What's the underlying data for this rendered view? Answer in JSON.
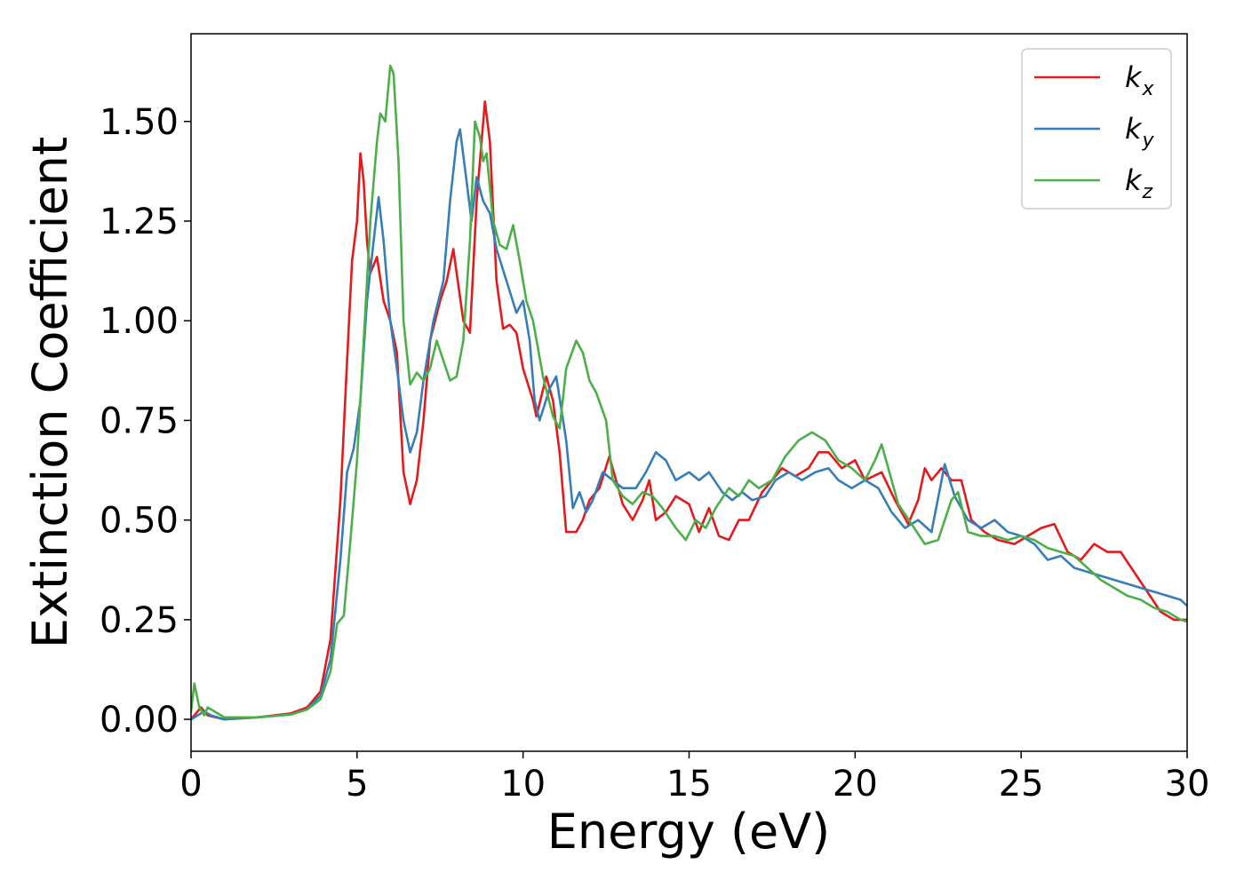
{
  "chart_data": {
    "type": "line",
    "title": "",
    "xlabel": "Energy (eV)",
    "ylabel": "Extinction Coefficient",
    "xlim": [
      0,
      30
    ],
    "ylim": [
      -0.08,
      1.72
    ],
    "xticks": [
      0,
      5,
      10,
      15,
      20,
      25,
      30
    ],
    "xtick_labels": [
      "0",
      "5",
      "10",
      "15",
      "20",
      "25",
      "30"
    ],
    "yticks": [
      0,
      0.25,
      0.5,
      0.75,
      1.0,
      1.25,
      1.5
    ],
    "ytick_labels": [
      "0.00",
      "0.25",
      "0.50",
      "0.75",
      "1.00",
      "1.25",
      "1.50"
    ],
    "grid": false,
    "legend_position": "top-right",
    "series": [
      {
        "name": "k",
        "subscript": "x",
        "color": "#e41a1c",
        "points": [
          [
            0,
            0
          ],
          [
            0.2,
            0.02
          ],
          [
            0.3,
            0.03
          ],
          [
            0.5,
            0.01
          ],
          [
            1,
            0
          ],
          [
            2,
            0.005
          ],
          [
            3,
            0.015
          ],
          [
            3.5,
            0.03
          ],
          [
            3.9,
            0.07
          ],
          [
            4.2,
            0.2
          ],
          [
            4.5,
            0.55
          ],
          [
            4.7,
            0.9
          ],
          [
            4.85,
            1.15
          ],
          [
            5.0,
            1.25
          ],
          [
            5.1,
            1.42
          ],
          [
            5.2,
            1.35
          ],
          [
            5.3,
            1.2
          ],
          [
            5.4,
            1.12
          ],
          [
            5.6,
            1.16
          ],
          [
            5.8,
            1.05
          ],
          [
            6.0,
            1.0
          ],
          [
            6.2,
            0.92
          ],
          [
            6.4,
            0.62
          ],
          [
            6.6,
            0.54
          ],
          [
            6.8,
            0.6
          ],
          [
            7.0,
            0.75
          ],
          [
            7.2,
            0.95
          ],
          [
            7.5,
            1.05
          ],
          [
            7.7,
            1.1
          ],
          [
            7.9,
            1.18
          ],
          [
            8.0,
            1.12
          ],
          [
            8.2,
            1.0
          ],
          [
            8.4,
            0.97
          ],
          [
            8.6,
            1.3
          ],
          [
            8.75,
            1.45
          ],
          [
            8.85,
            1.55
          ],
          [
            9.0,
            1.45
          ],
          [
            9.2,
            1.1
          ],
          [
            9.4,
            0.98
          ],
          [
            9.6,
            0.99
          ],
          [
            9.8,
            0.97
          ],
          [
            10.0,
            0.88
          ],
          [
            10.3,
            0.8
          ],
          [
            10.4,
            0.76
          ],
          [
            10.7,
            0.86
          ],
          [
            10.9,
            0.8
          ],
          [
            11.1,
            0.67
          ],
          [
            11.3,
            0.47
          ],
          [
            11.6,
            0.47
          ],
          [
            11.8,
            0.5
          ],
          [
            12.0,
            0.55
          ],
          [
            12.3,
            0.58
          ],
          [
            12.6,
            0.66
          ],
          [
            12.8,
            0.6
          ],
          [
            13.0,
            0.54
          ],
          [
            13.3,
            0.5
          ],
          [
            13.6,
            0.55
          ],
          [
            13.8,
            0.6
          ],
          [
            14.0,
            0.5
          ],
          [
            14.3,
            0.52
          ],
          [
            14.6,
            0.56
          ],
          [
            15.0,
            0.54
          ],
          [
            15.3,
            0.47
          ],
          [
            15.6,
            0.53
          ],
          [
            15.9,
            0.46
          ],
          [
            16.2,
            0.45
          ],
          [
            16.5,
            0.5
          ],
          [
            16.8,
            0.5
          ],
          [
            17.2,
            0.57
          ],
          [
            17.5,
            0.6
          ],
          [
            17.8,
            0.63
          ],
          [
            18.2,
            0.61
          ],
          [
            18.6,
            0.63
          ],
          [
            18.9,
            0.67
          ],
          [
            19.2,
            0.67
          ],
          [
            19.6,
            0.63
          ],
          [
            20.0,
            0.65
          ],
          [
            20.3,
            0.6
          ],
          [
            20.8,
            0.62
          ],
          [
            21.2,
            0.55
          ],
          [
            21.6,
            0.49
          ],
          [
            21.9,
            0.55
          ],
          [
            22.1,
            0.63
          ],
          [
            22.3,
            0.6
          ],
          [
            22.6,
            0.63
          ],
          [
            22.9,
            0.6
          ],
          [
            23.2,
            0.6
          ],
          [
            23.5,
            0.5
          ],
          [
            23.9,
            0.47
          ],
          [
            24.3,
            0.45
          ],
          [
            24.8,
            0.44
          ],
          [
            25.2,
            0.46
          ],
          [
            25.6,
            0.48
          ],
          [
            26.0,
            0.49
          ],
          [
            26.4,
            0.42
          ],
          [
            26.8,
            0.4
          ],
          [
            27.2,
            0.44
          ],
          [
            27.6,
            0.42
          ],
          [
            28.0,
            0.42
          ],
          [
            28.4,
            0.37
          ],
          [
            28.8,
            0.32
          ],
          [
            29.2,
            0.27
          ],
          [
            29.6,
            0.25
          ],
          [
            30,
            0.25
          ]
        ]
      },
      {
        "name": "k",
        "subscript": "y",
        "color": "#377eb8",
        "points": [
          [
            0,
            0
          ],
          [
            0.2,
            0.01
          ],
          [
            0.4,
            0.02
          ],
          [
            0.6,
            0.01
          ],
          [
            1,
            0
          ],
          [
            2,
            0.005
          ],
          [
            3,
            0.012
          ],
          [
            3.5,
            0.025
          ],
          [
            3.9,
            0.06
          ],
          [
            4.2,
            0.15
          ],
          [
            4.5,
            0.4
          ],
          [
            4.7,
            0.62
          ],
          [
            4.9,
            0.68
          ],
          [
            5.1,
            0.8
          ],
          [
            5.3,
            1.05
          ],
          [
            5.5,
            1.2
          ],
          [
            5.65,
            1.31
          ],
          [
            5.8,
            1.2
          ],
          [
            6.0,
            1.0
          ],
          [
            6.2,
            0.88
          ],
          [
            6.4,
            0.75
          ],
          [
            6.6,
            0.67
          ],
          [
            6.8,
            0.72
          ],
          [
            7.0,
            0.85
          ],
          [
            7.3,
            1.0
          ],
          [
            7.6,
            1.1
          ],
          [
            7.8,
            1.3
          ],
          [
            8.0,
            1.45
          ],
          [
            8.1,
            1.48
          ],
          [
            8.3,
            1.35
          ],
          [
            8.45,
            1.25
          ],
          [
            8.6,
            1.36
          ],
          [
            8.8,
            1.3
          ],
          [
            9.0,
            1.27
          ],
          [
            9.2,
            1.18
          ],
          [
            9.5,
            1.1
          ],
          [
            9.8,
            1.02
          ],
          [
            10.0,
            1.05
          ],
          [
            10.2,
            0.95
          ],
          [
            10.35,
            0.8
          ],
          [
            10.5,
            0.75
          ],
          [
            10.8,
            0.83
          ],
          [
            11.0,
            0.86
          ],
          [
            11.3,
            0.7
          ],
          [
            11.5,
            0.53
          ],
          [
            11.7,
            0.57
          ],
          [
            11.9,
            0.52
          ],
          [
            12.1,
            0.55
          ],
          [
            12.4,
            0.62
          ],
          [
            12.7,
            0.6
          ],
          [
            13.0,
            0.58
          ],
          [
            13.4,
            0.58
          ],
          [
            13.7,
            0.62
          ],
          [
            14.0,
            0.67
          ],
          [
            14.3,
            0.65
          ],
          [
            14.6,
            0.6
          ],
          [
            15.0,
            0.62
          ],
          [
            15.3,
            0.6
          ],
          [
            15.6,
            0.62
          ],
          [
            16.0,
            0.57
          ],
          [
            16.3,
            0.55
          ],
          [
            16.6,
            0.57
          ],
          [
            16.9,
            0.55
          ],
          [
            17.3,
            0.56
          ],
          [
            17.6,
            0.6
          ],
          [
            18.0,
            0.62
          ],
          [
            18.4,
            0.6
          ],
          [
            18.8,
            0.62
          ],
          [
            19.2,
            0.63
          ],
          [
            19.5,
            0.6
          ],
          [
            19.9,
            0.58
          ],
          [
            20.3,
            0.6
          ],
          [
            20.7,
            0.58
          ],
          [
            21.1,
            0.52
          ],
          [
            21.5,
            0.48
          ],
          [
            21.9,
            0.5
          ],
          [
            22.3,
            0.47
          ],
          [
            22.7,
            0.64
          ],
          [
            23.0,
            0.56
          ],
          [
            23.4,
            0.5
          ],
          [
            23.8,
            0.48
          ],
          [
            24.2,
            0.5
          ],
          [
            24.6,
            0.47
          ],
          [
            25.0,
            0.46
          ],
          [
            25.4,
            0.44
          ],
          [
            25.8,
            0.4
          ],
          [
            26.2,
            0.41
          ],
          [
            26.6,
            0.38
          ],
          [
            27.0,
            0.37
          ],
          [
            27.4,
            0.36
          ],
          [
            27.8,
            0.35
          ],
          [
            28.2,
            0.34
          ],
          [
            28.6,
            0.33
          ],
          [
            29.0,
            0.32
          ],
          [
            29.4,
            0.31
          ],
          [
            29.8,
            0.3
          ],
          [
            30,
            0.285
          ]
        ]
      },
      {
        "name": "k",
        "subscript": "z",
        "color": "#4daf4a",
        "points": [
          [
            0,
            0.02
          ],
          [
            0.1,
            0.09
          ],
          [
            0.25,
            0.03
          ],
          [
            0.4,
            0.01
          ],
          [
            0.5,
            0.03
          ],
          [
            0.7,
            0.02
          ],
          [
            1,
            0.005
          ],
          [
            2,
            0.005
          ],
          [
            3,
            0.012
          ],
          [
            3.5,
            0.025
          ],
          [
            3.9,
            0.05
          ],
          [
            4.2,
            0.12
          ],
          [
            4.4,
            0.24
          ],
          [
            4.6,
            0.26
          ],
          [
            4.8,
            0.45
          ],
          [
            5.0,
            0.65
          ],
          [
            5.2,
            0.95
          ],
          [
            5.4,
            1.25
          ],
          [
            5.6,
            1.45
          ],
          [
            5.7,
            1.52
          ],
          [
            5.85,
            1.5
          ],
          [
            6.0,
            1.64
          ],
          [
            6.1,
            1.62
          ],
          [
            6.25,
            1.4
          ],
          [
            6.4,
            1.0
          ],
          [
            6.6,
            0.84
          ],
          [
            6.8,
            0.87
          ],
          [
            7.0,
            0.85
          ],
          [
            7.2,
            0.88
          ],
          [
            7.4,
            0.95
          ],
          [
            7.6,
            0.9
          ],
          [
            7.8,
            0.85
          ],
          [
            8.0,
            0.86
          ],
          [
            8.2,
            0.95
          ],
          [
            8.4,
            1.2
          ],
          [
            8.55,
            1.5
          ],
          [
            8.7,
            1.46
          ],
          [
            8.8,
            1.4
          ],
          [
            8.9,
            1.42
          ],
          [
            9.1,
            1.25
          ],
          [
            9.3,
            1.19
          ],
          [
            9.5,
            1.18
          ],
          [
            9.7,
            1.24
          ],
          [
            9.9,
            1.15
          ],
          [
            10.1,
            1.05
          ],
          [
            10.3,
            1.0
          ],
          [
            10.6,
            0.86
          ],
          [
            10.9,
            0.76
          ],
          [
            11.1,
            0.73
          ],
          [
            11.3,
            0.88
          ],
          [
            11.6,
            0.95
          ],
          [
            11.8,
            0.92
          ],
          [
            12.0,
            0.85
          ],
          [
            12.2,
            0.82
          ],
          [
            12.5,
            0.75
          ],
          [
            12.7,
            0.6
          ],
          [
            13.0,
            0.56
          ],
          [
            13.3,
            0.54
          ],
          [
            13.6,
            0.57
          ],
          [
            13.9,
            0.56
          ],
          [
            14.2,
            0.53
          ],
          [
            14.6,
            0.48
          ],
          [
            14.9,
            0.45
          ],
          [
            15.2,
            0.5
          ],
          [
            15.5,
            0.48
          ],
          [
            15.8,
            0.53
          ],
          [
            16.2,
            0.58
          ],
          [
            16.5,
            0.56
          ],
          [
            16.8,
            0.6
          ],
          [
            17.1,
            0.58
          ],
          [
            17.5,
            0.6
          ],
          [
            17.9,
            0.66
          ],
          [
            18.3,
            0.7
          ],
          [
            18.7,
            0.72
          ],
          [
            19.1,
            0.7
          ],
          [
            19.5,
            0.65
          ],
          [
            19.9,
            0.63
          ],
          [
            20.3,
            0.6
          ],
          [
            20.6,
            0.65
          ],
          [
            20.8,
            0.69
          ],
          [
            21.0,
            0.63
          ],
          [
            21.3,
            0.54
          ],
          [
            21.7,
            0.49
          ],
          [
            22.1,
            0.44
          ],
          [
            22.5,
            0.45
          ],
          [
            22.9,
            0.55
          ],
          [
            23.1,
            0.57
          ],
          [
            23.4,
            0.47
          ],
          [
            23.8,
            0.46
          ],
          [
            24.2,
            0.46
          ],
          [
            24.6,
            0.45
          ],
          [
            25.0,
            0.46
          ],
          [
            25.4,
            0.45
          ],
          [
            25.8,
            0.43
          ],
          [
            26.2,
            0.42
          ],
          [
            26.6,
            0.41
          ],
          [
            27.0,
            0.38
          ],
          [
            27.4,
            0.35
          ],
          [
            27.8,
            0.33
          ],
          [
            28.2,
            0.31
          ],
          [
            28.6,
            0.3
          ],
          [
            29.0,
            0.28
          ],
          [
            29.4,
            0.27
          ],
          [
            29.8,
            0.25
          ],
          [
            30,
            0.245
          ]
        ]
      }
    ]
  }
}
